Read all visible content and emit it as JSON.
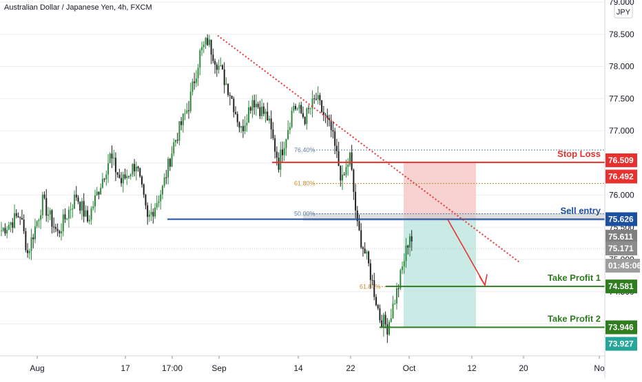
{
  "header": {
    "symbol_title": "Australian Dollar / Japanese Yen, 4h, FXCM"
  },
  "currency_label": "JPY",
  "colors": {
    "up": "#2e8b3c",
    "down": "#1f1f1f",
    "stop": "#e8312f",
    "entry": "#1c4fa0",
    "tp": "#2f7d1f",
    "trend": "#e8312f",
    "fib_blue": "#5b7fa6",
    "fib_orange": "#c98a2c",
    "risk_zone": "#f7c9c9",
    "reward_zone": "#bfe6e0",
    "grid": "#ededed"
  },
  "chart_data": {
    "type": "candlestick",
    "y_axis": {
      "min": 72.9,
      "max": 79.0,
      "ticks": [
        "79.000",
        "78.500",
        "78.000",
        "77.500",
        "77.000",
        "76.500",
        "76.000",
        "75.500",
        "75.000",
        "74.500",
        "74.000"
      ]
    },
    "x_axis": {
      "ticks": [
        "Aug",
        "17",
        "17:00",
        "Sep",
        "14",
        "22",
        "Oct",
        "12",
        "20",
        "No"
      ]
    },
    "price_tags": [
      {
        "value": "76.509",
        "color": "#e8312f"
      },
      {
        "value": "76.492",
        "color": "#e8312f"
      },
      {
        "value": "75.626",
        "color": "#1c4fa0"
      },
      {
        "value": "75.611",
        "color": "#7f7f7f"
      },
      {
        "value": "75.171",
        "color": "#8c8c8c"
      },
      {
        "value": "01:45:06",
        "color": "#9e9e9e"
      },
      {
        "value": "74.581",
        "color": "#2f7d1f"
      },
      {
        "value": "73.946",
        "color": "#2f7d1f"
      },
      {
        "value": "73.927",
        "color": "#26a69a"
      }
    ],
    "levels": [
      {
        "label": "Stop Loss",
        "price": 76.509,
        "color": "#e8312f"
      },
      {
        "label": "Sell entry",
        "price": 75.626,
        "color": "#1c4fa0"
      },
      {
        "label": "Take Profit 1",
        "price": 74.581,
        "color": "#2f7d1f"
      },
      {
        "label": "Take Profit 2",
        "price": 73.946,
        "color": "#2f7d1f"
      }
    ],
    "fib_labels": [
      {
        "label": "76.40%",
        "price": 76.7
      },
      {
        "label": "61.80%",
        "price": 76.18
      },
      {
        "label": "50.00%",
        "price": 75.71
      },
      {
        "label": "61.80%",
        "price": 74.58
      }
    ]
  }
}
